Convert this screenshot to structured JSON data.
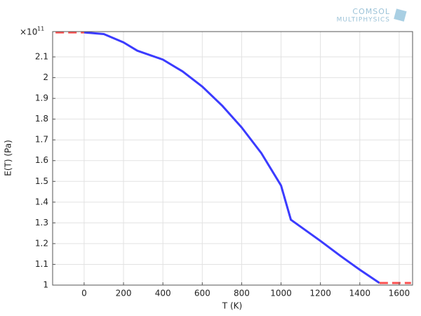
{
  "chart_data": {
    "type": "line",
    "xlabel": "T (K)",
    "ylabel": "E(T) (Pa)",
    "y_multiplier": {
      "base": "×10",
      "exponent": "11"
    },
    "logo": [
      "COMSOL",
      "MULTIPHYSICS"
    ],
    "xlim": [
      -160,
      1668
    ],
    "ylim": [
      1,
      2.222
    ],
    "xticks": [
      0,
      200,
      400,
      600,
      800,
      1000,
      1200,
      1400,
      1600
    ],
    "yticks": [
      1,
      1.1,
      1.2,
      1.3,
      1.4,
      1.5,
      1.6,
      1.7,
      1.8,
      1.9,
      2,
      2.1
    ],
    "grid": true,
    "series": [
      {
        "color": "#3b3bff",
        "style": "solid",
        "x": [
          0,
          100,
          200,
          270,
          400,
          500,
          600,
          700,
          800,
          900,
          1000,
          1050,
          1200,
          1300,
          1400,
          1500
        ],
        "values": [
          2.218,
          2.21,
          2.17,
          2.13,
          2.087,
          2.03,
          1.957,
          1.866,
          1.76,
          1.636,
          1.48,
          1.315,
          1.213,
          1.142,
          1.074,
          1.01
        ]
      },
      {
        "color": "#ff5050",
        "style": "dashed",
        "x": [
          -145,
          0
        ],
        "values": [
          2.218,
          2.218
        ]
      },
      {
        "color": "#ff5050",
        "style": "dashed",
        "x": [
          1500,
          1660
        ],
        "values": [
          1.01,
          1.01
        ]
      }
    ]
  }
}
